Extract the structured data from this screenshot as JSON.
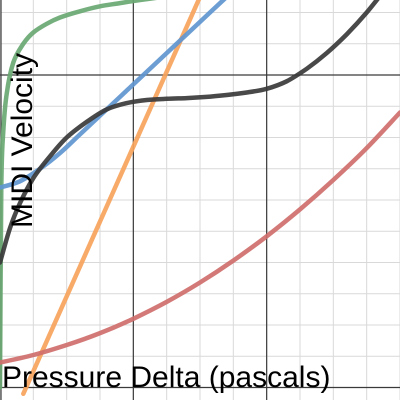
{
  "chart_data": {
    "type": "line",
    "title": "",
    "xlabel": "Pressure Delta (pascals)",
    "ylabel": "MIDI Velocity",
    "xlim": [
      0,
      6
    ],
    "ylim": [
      -0.2,
      6.2
    ],
    "grid": true,
    "legend": "none",
    "series": [
      {
        "color": "#6aa873",
        "x": [
          0.0,
          0.02,
          0.05,
          0.1,
          0.2,
          0.35,
          0.5,
          0.7,
          0.9,
          1.2,
          1.5,
          1.8,
          2.1,
          2.45
        ],
        "y": [
          0.0,
          3.2,
          4.1,
          4.7,
          5.2,
          5.5,
          5.68,
          5.82,
          5.92,
          6.02,
          6.1,
          6.15,
          6.2,
          6.25
        ]
      },
      {
        "color": "#f7a35c",
        "x": [
          0.35,
          3.0
        ],
        "y": [
          -0.1,
          6.25
        ]
      },
      {
        "color": "#6096d0",
        "x": [
          0.0,
          0.3,
          0.6,
          0.9,
          1.2,
          1.5,
          1.8,
          2.1,
          2.4,
          2.7,
          3.0,
          3.4
        ],
        "y": [
          3.2,
          3.3,
          3.5,
          3.75,
          4.05,
          4.35,
          4.65,
          4.95,
          5.25,
          5.55,
          5.85,
          6.25
        ]
      },
      {
        "color": "#3a3a3a",
        "x": [
          0.0,
          0.15,
          0.3,
          0.5,
          0.75,
          1.0,
          1.3,
          1.6,
          1.9,
          2.2,
          2.5,
          2.8,
          3.1,
          3.4,
          3.7,
          4.0,
          4.3,
          4.6,
          4.9,
          5.2,
          5.5,
          5.8
        ],
        "y": [
          2.0,
          2.55,
          2.95,
          3.35,
          3.7,
          4.0,
          4.25,
          4.45,
          4.55,
          4.6,
          4.62,
          4.63,
          4.65,
          4.68,
          4.72,
          4.78,
          4.9,
          5.1,
          5.35,
          5.65,
          6.0,
          6.4
        ]
      },
      {
        "color": "#cf6f6c",
        "x": [
          0.0,
          0.5,
          1.0,
          1.5,
          2.0,
          2.5,
          3.0,
          3.5,
          4.0,
          4.5,
          5.0,
          5.5,
          6.0
        ],
        "y": [
          0.4,
          0.52,
          0.68,
          0.87,
          1.1,
          1.37,
          1.68,
          2.03,
          2.42,
          2.85,
          3.32,
          3.83,
          4.4
        ]
      }
    ]
  }
}
